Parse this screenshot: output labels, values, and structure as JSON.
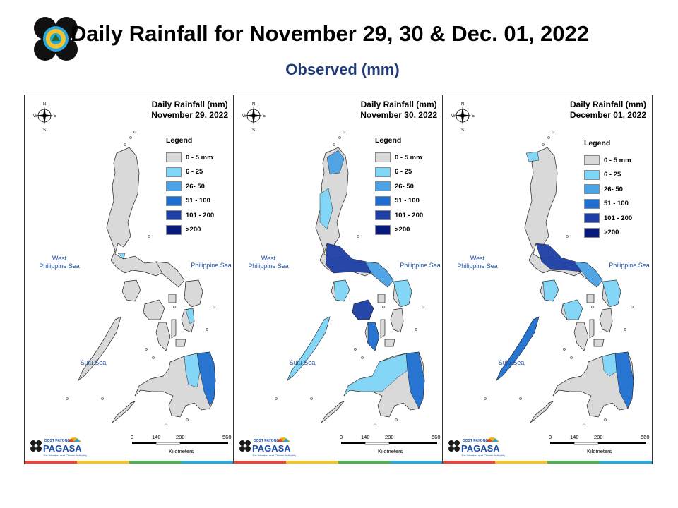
{
  "header": {
    "title": "Daily Rainfall for November 29, 30 & Dec. 01, 2022",
    "subtitle": "Observed (mm)"
  },
  "legend": {
    "title": "Legend",
    "items": [
      {
        "label": "0 - 5 mm",
        "color": "#d9d9d9"
      },
      {
        "label": "6 - 25",
        "color": "#7fd6f7"
      },
      {
        "label": "26- 50",
        "color": "#4aa3e6"
      },
      {
        "label": "51 - 100",
        "color": "#1f6fd1"
      },
      {
        "label": "101 - 200",
        "color": "#1d3fa6"
      },
      {
        "label": ">200",
        "color": "#0a1a7a"
      }
    ]
  },
  "panels": [
    {
      "title_line1": "Daily Rainfall (mm)",
      "title_line2": "November 29, 2022"
    },
    {
      "title_line1": "Daily Rainfall (mm)",
      "title_line2": "November 30, 2022"
    },
    {
      "title_line1": "Daily Rainfall (mm)",
      "title_line2": "December 01, 2022"
    }
  ],
  "seas": {
    "west": "West\nPhilippine Sea",
    "east": "Philippine Sea",
    "sulu": "Sulu Sea"
  },
  "compass": {
    "n": "N",
    "s": "S",
    "e": "E",
    "w": "W"
  },
  "scale": {
    "ticks": [
      "0",
      "140",
      "280",
      "560"
    ],
    "unit": "Kilometers"
  },
  "logo": {
    "brand": "PAGASA",
    "tagline": "The Weather and Climate Authority",
    "prefix": "DOST",
    "payong": "PAYONG"
  }
}
